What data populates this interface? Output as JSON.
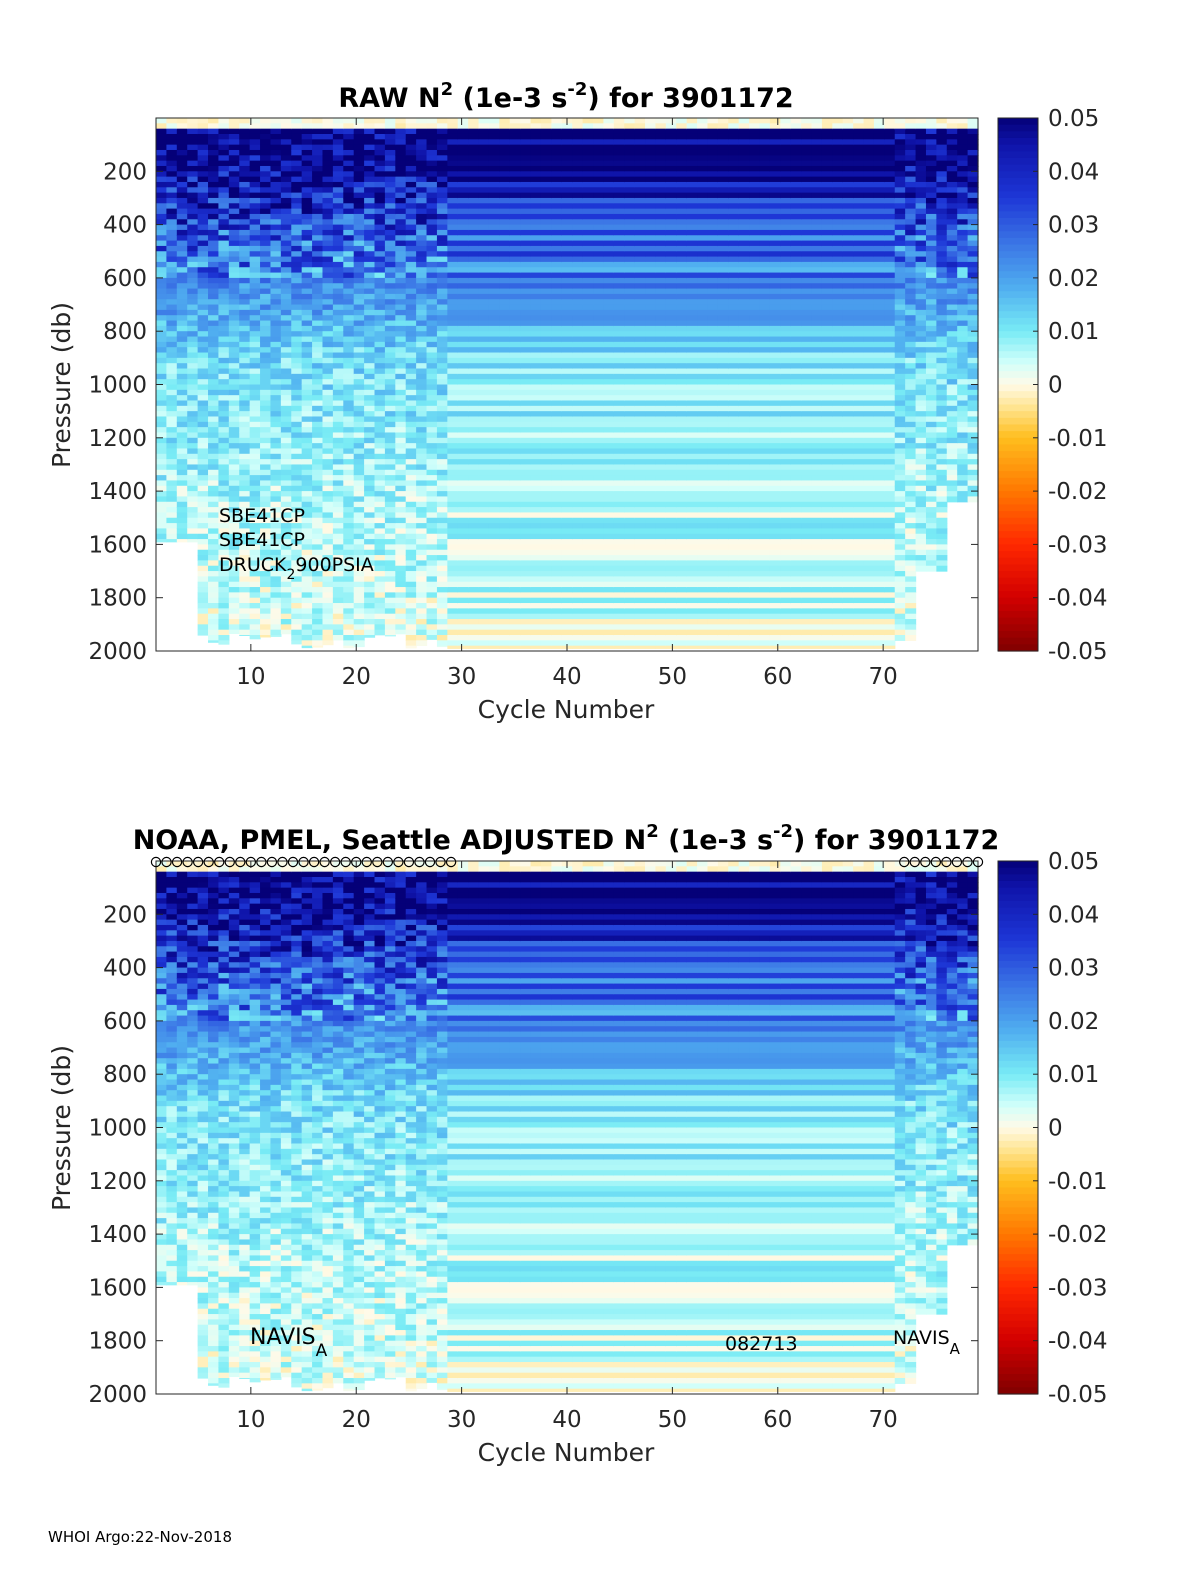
{
  "chart_data": [
    {
      "type": "heatmap",
      "title": "RAW N2 (1e-3 s-2) for 3901172",
      "title_parts": {
        "pre": "RAW N",
        "sup1": "2",
        "mid": " (1e-3 s",
        "sup2": "-2",
        "post": ") for 3901172"
      },
      "xlabel": "Cycle Number",
      "ylabel": "Pressure (db)",
      "xlim": [
        1,
        79
      ],
      "ylim": [
        0,
        2000
      ],
      "xticks": [
        "10",
        "20",
        "30",
        "40",
        "50",
        "60",
        "70"
      ],
      "yticks": [
        "200",
        "400",
        "600",
        "800",
        "1000",
        "1200",
        "1400",
        "1600",
        "1800",
        "2000"
      ],
      "colorbar": {
        "range": [
          -0.05,
          0.05
        ],
        "ticks": [
          "0.05",
          "0.04",
          "0.03",
          "0.02",
          "0.01",
          "0",
          "-0.01",
          "-0.02",
          "-0.03",
          "-0.04",
          "-0.05"
        ]
      },
      "annotations": [
        {
          "text": "SBE41CP"
        },
        {
          "text": "SBE41CP"
        },
        {
          "text": "DRUCK",
          "sub": "2",
          "rest": "900PSIA"
        }
      ],
      "profiles": {
        "segment_1": {
          "cycles": [
            1,
            29
          ],
          "max_pressure_db": 2000,
          "note": "cycles 1-4 end near 1590 db"
        },
        "segment_2": {
          "cycles": [
            29,
            71
          ],
          "max_pressure_db": 1990,
          "note": "horizontally uniform banding"
        },
        "segment_3": {
          "cycles": [
            71,
            79
          ],
          "max_pressure_db": 1960,
          "note": "shallower profiles at the right edge"
        }
      }
    },
    {
      "type": "heatmap",
      "title": "NOAA, PMEL, Seattle  ADJUSTED N2 (1e-3 s-2) for 3901172",
      "title_parts": {
        "pre": "NOAA, PMEL, Seattle  ADJUSTED N",
        "sup1": "2",
        "mid": " (1e-3 s",
        "sup2": "-2",
        "post": ") for 3901172"
      },
      "xlabel": "Cycle Number",
      "ylabel": "Pressure (db)",
      "xlim": [
        1,
        79
      ],
      "ylim": [
        0,
        2000
      ],
      "xticks": [
        "10",
        "20",
        "30",
        "40",
        "50",
        "60",
        "70"
      ],
      "yticks": [
        "200",
        "400",
        "600",
        "800",
        "1000",
        "1200",
        "1400",
        "1600",
        "1800",
        "2000"
      ],
      "colorbar": {
        "range": [
          -0.05,
          0.05
        ],
        "ticks": [
          "0.05",
          "0.04",
          "0.03",
          "0.02",
          "0.01",
          "0",
          "-0.01",
          "-0.02",
          "-0.03",
          "-0.04",
          "-0.05"
        ]
      },
      "annotations": [
        {
          "text": "NAVIS",
          "sub": "A"
        },
        {
          "text": "082713"
        },
        {
          "text": "NAVIS",
          "sub": "A"
        }
      ],
      "marker_cycles": [
        1,
        2,
        3,
        4,
        5,
        6,
        7,
        8,
        9,
        10,
        11,
        12,
        13,
        14,
        15,
        16,
        17,
        18,
        19,
        20,
        21,
        22,
        23,
        24,
        25,
        26,
        27,
        28,
        29,
        72,
        73,
        74,
        75,
        76,
        77,
        78,
        79
      ]
    }
  ],
  "footer": "WHOI Argo:22-Nov-2018"
}
